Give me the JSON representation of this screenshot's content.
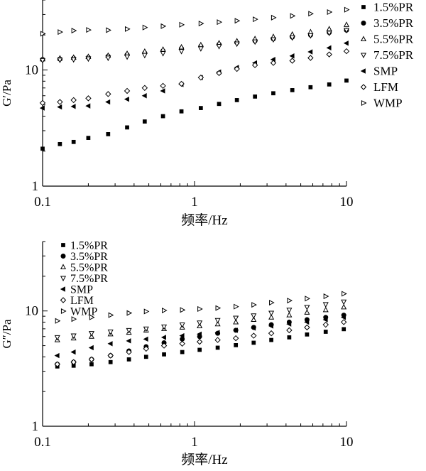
{
  "chart_data": [
    {
      "type": "scatter",
      "xlabel": "频率/Hz",
      "ylabel": "G′/Pa",
      "xscale": "log",
      "yscale": "log",
      "xlim": [
        0.1,
        10
      ],
      "ylim": [
        1,
        40
      ],
      "xticks": [
        "0.1",
        "1",
        "10"
      ],
      "yticks": [
        "1",
        "10"
      ],
      "legend_position": "right",
      "series": [
        {
          "name": "1.5%PR",
          "marker": "square-filled",
          "x": [
            0.1,
            0.13,
            0.16,
            0.2,
            0.27,
            0.36,
            0.47,
            0.62,
            0.82,
            1.1,
            1.45,
            1.9,
            2.5,
            3.3,
            4.4,
            5.8,
            7.7,
            10
          ],
          "y": [
            2.1,
            2.3,
            2.4,
            2.6,
            2.8,
            3.2,
            3.6,
            4.0,
            4.4,
            4.7,
            5.1,
            5.5,
            5.9,
            6.3,
            6.7,
            7.1,
            7.5,
            8.1
          ]
        },
        {
          "name": "3.5%PR",
          "marker": "circle-filled",
          "x": [
            0.1,
            0.13,
            0.16,
            0.2,
            0.27,
            0.36,
            0.47,
            0.62,
            0.82,
            1.1,
            1.45,
            1.9,
            2.5,
            3.3,
            4.4,
            5.8,
            7.7,
            10
          ],
          "y": [
            12.3,
            12.4,
            12.6,
            12.8,
            13.1,
            13.5,
            14,
            14.6,
            15.3,
            16,
            16.6,
            17.2,
            17.8,
            18.5,
            19.2,
            20,
            21,
            22
          ]
        },
        {
          "name": "5.5%PR",
          "marker": "triangle-up-open",
          "x": [
            0.1,
            0.13,
            0.16,
            0.2,
            0.27,
            0.36,
            0.47,
            0.62,
            0.82,
            1.1,
            1.45,
            1.9,
            2.5,
            3.3,
            4.4,
            5.8,
            7.7,
            10
          ],
          "y": [
            12.4,
            12.6,
            12.8,
            13,
            13.3,
            13.8,
            14.4,
            15,
            15.7,
            16.4,
            17,
            17.7,
            18.5,
            19.3,
            20.2,
            21.2,
            22.5,
            24.5
          ]
        },
        {
          "name": "7.5%PR",
          "marker": "triangle-down-open",
          "x": [
            0.1,
            0.13,
            0.16,
            0.2,
            0.27,
            0.36,
            0.47,
            0.62,
            0.82,
            1.1,
            1.45,
            1.9,
            2.5,
            3.3,
            4.4,
            5.8,
            7.7,
            10
          ],
          "y": [
            12.1,
            12.2,
            12.3,
            12.5,
            12.7,
            13,
            13.4,
            13.9,
            14.5,
            15.3,
            16,
            16.8,
            17.5,
            18.3,
            19,
            19.8,
            20.8,
            22
          ]
        },
        {
          "name": "SMP",
          "marker": "triangle-left-filled",
          "x": [
            0.1,
            0.13,
            0.16,
            0.2,
            0.27,
            0.36,
            0.47,
            0.62,
            0.82,
            1.1,
            1.45,
            1.9,
            2.5,
            3.3,
            4.4,
            5.8,
            7.7,
            10
          ],
          "y": [
            4.7,
            4.8,
            4.85,
            4.9,
            5.3,
            5.6,
            6.0,
            6.6,
            7.5,
            8.6,
            9.6,
            10.5,
            11.5,
            12.3,
            13.2,
            14.3,
            15.5,
            17
          ]
        },
        {
          "name": "LFM",
          "marker": "diamond-open",
          "x": [
            0.1,
            0.13,
            0.16,
            0.2,
            0.27,
            0.36,
            0.47,
            0.62,
            0.82,
            1.1,
            1.45,
            1.9,
            2.5,
            3.3,
            4.4,
            5.8,
            7.7,
            10
          ],
          "y": [
            5.2,
            5.3,
            5.5,
            5.7,
            6.2,
            6.6,
            7,
            7.3,
            7.6,
            8.6,
            9.4,
            10.2,
            11,
            11.5,
            12,
            12.7,
            13.6,
            14.5
          ]
        },
        {
          "name": "WMP",
          "marker": "triangle-right-open",
          "x": [
            0.1,
            0.13,
            0.16,
            0.2,
            0.27,
            0.36,
            0.47,
            0.62,
            0.82,
            1.1,
            1.45,
            1.9,
            2.5,
            3.3,
            4.4,
            5.8,
            7.7,
            10
          ],
          "y": [
            20.5,
            21.2,
            21.8,
            22.1,
            22,
            22.5,
            23.2,
            23.8,
            24.5,
            25.1,
            25.8,
            26.5,
            27.3,
            28.2,
            29.2,
            30.5,
            31.5,
            33
          ]
        }
      ]
    },
    {
      "type": "scatter",
      "xlabel": "频率/Hz",
      "ylabel": "G″/Pa",
      "xscale": "log",
      "yscale": "log",
      "xlim": [
        0.1,
        10
      ],
      "ylim": [
        1,
        40
      ],
      "xticks": [
        "0.1",
        "1",
        "10"
      ],
      "yticks": [
        "1",
        "10"
      ],
      "legend_position": "top-left",
      "series": [
        {
          "name": "1.5%PR",
          "marker": "square-filled",
          "x": [
            0.125,
            0.16,
            0.21,
            0.28,
            0.37,
            0.48,
            0.63,
            0.83,
            1.08,
            1.42,
            1.87,
            2.45,
            3.2,
            4.2,
            5.5,
            7.3,
            9.6
          ],
          "y": [
            3.3,
            3.35,
            3.45,
            3.6,
            3.8,
            4.0,
            4.2,
            4.4,
            4.6,
            4.8,
            5.05,
            5.3,
            5.6,
            5.9,
            6.25,
            6.6,
            6.95
          ]
        },
        {
          "name": "3.5%PR",
          "marker": "circle-filled",
          "x": [
            0.125,
            0.16,
            0.21,
            0.28,
            0.37,
            0.48,
            0.63,
            0.83,
            1.08,
            1.42,
            1.87,
            2.45,
            3.2,
            4.2,
            5.5,
            7.3,
            9.6
          ],
          "y": [
            3.45,
            3.6,
            3.8,
            4.1,
            4.5,
            4.9,
            5.3,
            5.7,
            6.0,
            6.4,
            6.8,
            7.2,
            7.6,
            8.0,
            8.4,
            8.8,
            9.2
          ]
        },
        {
          "name": "5.5%PR",
          "marker": "triangle-up-open",
          "x": [
            0.125,
            0.16,
            0.21,
            0.28,
            0.37,
            0.48,
            0.63,
            0.83,
            1.08,
            1.42,
            1.87,
            2.45,
            3.2,
            4.2,
            5.5,
            7.3,
            9.6
          ],
          "y": [
            5.6,
            5.8,
            6.0,
            6.3,
            6.5,
            6.8,
            7.0,
            7.2,
            7.4,
            7.7,
            8.0,
            8.4,
            8.8,
            9.2,
            9.7,
            10.2,
            10.8
          ]
        },
        {
          "name": "7.5%PR",
          "marker": "triangle-down-open",
          "x": [
            0.125,
            0.16,
            0.21,
            0.28,
            0.37,
            0.48,
            0.63,
            0.83,
            1.08,
            1.42,
            1.87,
            2.45,
            3.2,
            4.2,
            5.5,
            7.3,
            9.6
          ],
          "y": [
            5.9,
            6.1,
            6.4,
            6.6,
            6.8,
            7.0,
            7.3,
            7.6,
            7.9,
            8.3,
            8.7,
            9.1,
            9.6,
            10.2,
            10.8,
            11.4,
            12
          ]
        },
        {
          "name": "SMP",
          "marker": "triangle-left-filled",
          "x": [
            0.125,
            0.16,
            0.21,
            0.28,
            0.37,
            0.48,
            0.63,
            0.83,
            1.08,
            1.42,
            1.87,
            2.45,
            3.2,
            4.2,
            5.5,
            7.3,
            9.6
          ],
          "y": [
            4.1,
            4.4,
            4.8,
            5.2,
            5.5,
            5.7,
            5.9,
            6.1,
            6.3,
            6.5,
            6.8,
            7.1,
            7.4,
            7.7,
            8.0,
            8.4,
            8.8
          ]
        },
        {
          "name": "LFM",
          "marker": "diamond-open",
          "x": [
            0.125,
            0.16,
            0.21,
            0.28,
            0.37,
            0.48,
            0.63,
            0.83,
            1.08,
            1.42,
            1.87,
            2.45,
            3.2,
            4.2,
            5.5,
            7.3,
            9.6
          ],
          "y": [
            3.45,
            3.6,
            3.8,
            4.1,
            4.4,
            4.7,
            5.0,
            5.2,
            5.4,
            5.6,
            5.8,
            6.1,
            6.4,
            6.8,
            7.2,
            7.6,
            8.0
          ]
        },
        {
          "name": "WMP",
          "marker": "triangle-right-open",
          "x": [
            0.125,
            0.16,
            0.21,
            0.28,
            0.37,
            0.48,
            0.63,
            0.83,
            1.08,
            1.42,
            1.87,
            2.45,
            3.2,
            4.2,
            5.5,
            7.3,
            9.6
          ],
          "y": [
            8.2,
            8.5,
            8.8,
            9.2,
            9.6,
            9.9,
            10.1,
            10.2,
            10.4,
            10.6,
            10.9,
            11.3,
            11.8,
            12.3,
            12.8,
            13.4,
            14.1
          ]
        }
      ]
    }
  ]
}
